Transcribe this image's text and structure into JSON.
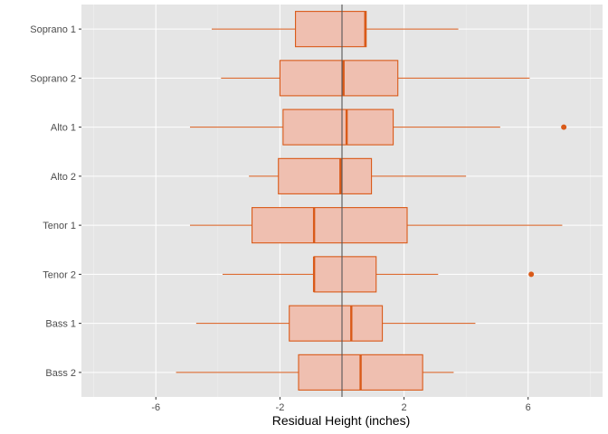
{
  "chart_data": {
    "type": "boxplot",
    "orientation": "horizontal",
    "xlabel": "Residual Height (inches)",
    "ylabel": "",
    "xlim": [
      -8.4,
      8.4
    ],
    "xticks": [
      -6,
      -2,
      2,
      6
    ],
    "xtick_labels": [
      "-6",
      "-2",
      "2",
      "6"
    ],
    "grid": true,
    "reference_line_x": 0,
    "colors": {
      "panel_bg": "#e5e5e5",
      "grid_major": "#ffffff",
      "grid_minor": "#f0f0f0",
      "box_fill": "#efbfb0",
      "box_stroke": "#d95a19",
      "reference_line": "#555555"
    },
    "categories": [
      "Soprano 1",
      "Soprano 2",
      "Alto 1",
      "Alto 2",
      "Tenor 1",
      "Tenor 2",
      "Bass 1",
      "Bass 2"
    ],
    "boxes": [
      {
        "category": "Soprano 1",
        "whisker_low": -4.2,
        "q1": -1.5,
        "median": 0.75,
        "q3": 0.78,
        "whisker_high": 3.75,
        "outliers": []
      },
      {
        "category": "Soprano 2",
        "whisker_low": -3.9,
        "q1": -2.0,
        "median": 0.05,
        "q3": 1.8,
        "whisker_high": 6.05,
        "outliers": []
      },
      {
        "category": "Alto 1",
        "whisker_low": -4.9,
        "q1": -1.9,
        "median": 0.15,
        "q3": 1.65,
        "whisker_high": 5.1,
        "outliers": [
          7.15
        ]
      },
      {
        "category": "Alto 2",
        "whisker_low": -3.0,
        "q1": -2.05,
        "median": -0.05,
        "q3": 0.95,
        "whisker_high": 4.0,
        "outliers": []
      },
      {
        "category": "Tenor 1",
        "whisker_low": -4.9,
        "q1": -2.9,
        "median": -0.9,
        "q3": 2.1,
        "whisker_high": 7.1,
        "outliers": []
      },
      {
        "category": "Tenor 2",
        "whisker_low": -3.85,
        "q1": -0.9,
        "median": -0.9,
        "q3": 1.1,
        "whisker_high": 3.1,
        "outliers": [
          6.1
        ]
      },
      {
        "category": "Bass 1",
        "whisker_low": -4.7,
        "q1": -1.7,
        "median": 0.3,
        "q3": 1.3,
        "whisker_high": 4.3,
        "outliers": []
      },
      {
        "category": "Bass 2",
        "whisker_low": -5.35,
        "q1": -1.4,
        "median": 0.6,
        "q3": 2.6,
        "whisker_high": 3.6,
        "outliers": []
      }
    ]
  }
}
